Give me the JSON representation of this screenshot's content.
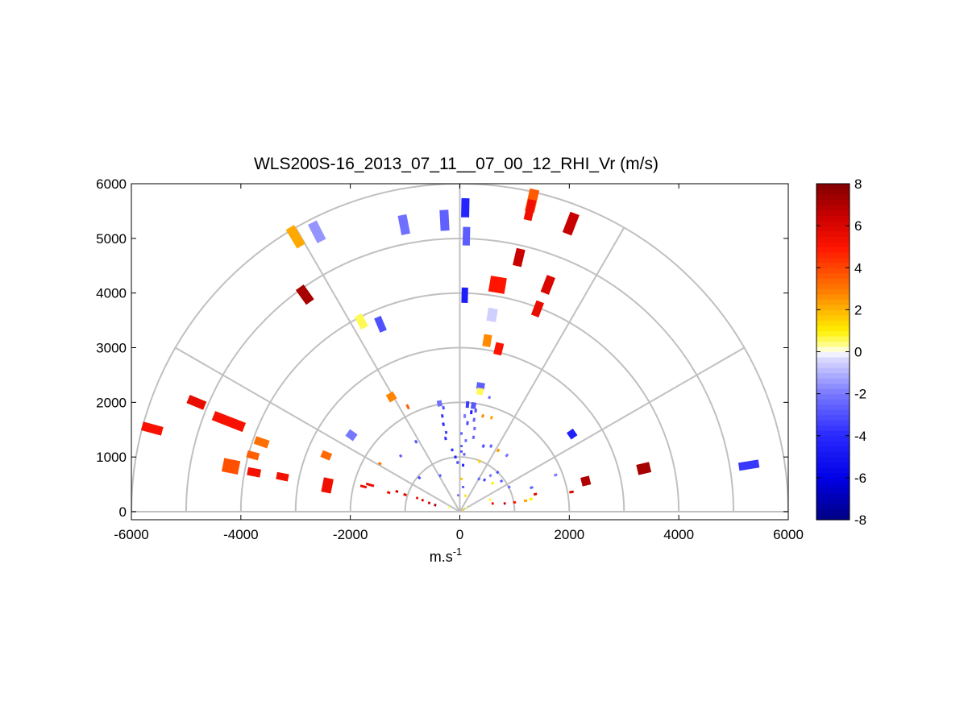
{
  "chart_data": {
    "type": "polar-rhi-scatter",
    "title": "WLS200S-16_2013_07_11__07_00_12_RHI_Vr (m/s)",
    "xlabel": "m.s",
    "xlabel_superscript": "-1",
    "ylabel": "",
    "xlim": [
      -6000,
      6000
    ],
    "ylim": [
      0,
      6000
    ],
    "x_ticks": [
      {
        "value": -6000,
        "label": "-6000"
      },
      {
        "value": -4000,
        "label": "-4000"
      },
      {
        "value": -2000,
        "label": "-2000"
      },
      {
        "value": 0,
        "label": "0"
      },
      {
        "value": 2000,
        "label": "2000"
      },
      {
        "value": 4000,
        "label": "4000"
      },
      {
        "value": 6000,
        "label": "6000"
      }
    ],
    "y_ticks": [
      {
        "value": 0,
        "label": "0"
      },
      {
        "value": 1000,
        "label": "1000"
      },
      {
        "value": 2000,
        "label": "2000"
      },
      {
        "value": 3000,
        "label": "3000"
      },
      {
        "value": 4000,
        "label": "4000"
      },
      {
        "value": 5000,
        "label": "5000"
      },
      {
        "value": 6000,
        "label": "6000"
      }
    ],
    "polar_grid": {
      "range_rings": [
        1000,
        2000,
        3000,
        4000,
        5000,
        6000
      ],
      "spoke_angles_deg": [
        0,
        30,
        60,
        90,
        120,
        150,
        180
      ]
    },
    "colorbar": {
      "min": -8,
      "max": 8,
      "ticks": [
        {
          "value": 8,
          "label": "8"
        },
        {
          "value": 6,
          "label": "6"
        },
        {
          "value": 4,
          "label": "4"
        },
        {
          "value": 2,
          "label": "2"
        },
        {
          "value": 0,
          "label": "0"
        },
        {
          "value": -2,
          "label": "-2"
        },
        {
          "value": -4,
          "label": "-4"
        },
        {
          "value": -6,
          "label": "-6"
        },
        {
          "value": -8,
          "label": "-8"
        }
      ]
    },
    "points": [
      {
        "x": -5620,
        "y": 1520,
        "v": 5.2,
        "len": 380,
        "w": 11
      },
      {
        "x": -4810,
        "y": 2000,
        "v": 5.6,
        "len": 330,
        "w": 11
      },
      {
        "x": -4220,
        "y": 1650,
        "v": 5.2,
        "len": 600,
        "w": 12
      },
      {
        "x": -4180,
        "y": 830,
        "v": 3.8,
        "len": 300,
        "w": 17
      },
      {
        "x": -3760,
        "y": 720,
        "v": 5.3,
        "len": 240,
        "w": 10
      },
      {
        "x": -3780,
        "y": 1030,
        "v": 3.5,
        "len": 220,
        "w": 9
      },
      {
        "x": -3620,
        "y": 1270,
        "v": 3.2,
        "len": 260,
        "w": 10
      },
      {
        "x": -3240,
        "y": 640,
        "v": 5.3,
        "len": 220,
        "w": 9
      },
      {
        "x": -2420,
        "y": 480,
        "v": 5.4,
        "len": 180,
        "w": 18
      },
      {
        "x": -2440,
        "y": 1030,
        "v": 3.3,
        "len": 180,
        "w": 9
      },
      {
        "x": -1760,
        "y": 460,
        "v": 5.5,
        "len": 120,
        "w": 3
      },
      {
        "x": -1640,
        "y": 490,
        "v": 5.6,
        "len": 150,
        "w": 3
      },
      {
        "x": -1460,
        "y": 880,
        "v": 3.0,
        "len": 60,
        "w": 3
      },
      {
        "x": -1300,
        "y": 350,
        "v": 5.3,
        "len": 60,
        "w": 3
      },
      {
        "x": -1150,
        "y": 370,
        "v": 6.5,
        "len": 50,
        "w": 3
      },
      {
        "x": -1000,
        "y": 310,
        "v": 5.6,
        "len": 60,
        "w": 3
      },
      {
        "x": -1980,
        "y": 1400,
        "v": -2.0,
        "len": 170,
        "w": 10
      },
      {
        "x": -1250,
        "y": 2100,
        "v": 2.8,
        "len": 150,
        "w": 10
      },
      {
        "x": -950,
        "y": 1920,
        "v": 3.5,
        "len": 90,
        "w": 3
      },
      {
        "x": -1080,
        "y": 1020,
        "v": -2.6,
        "len": 50,
        "w": 3
      },
      {
        "x": -800,
        "y": 1280,
        "v": -2.8,
        "len": 60,
        "w": 3
      },
      {
        "x": -740,
        "y": 620,
        "v": -3.3,
        "len": 50,
        "w": 3
      },
      {
        "x": -780,
        "y": 250,
        "v": 5.5,
        "len": 40,
        "w": 3
      },
      {
        "x": -680,
        "y": 210,
        "v": 6.0,
        "len": 40,
        "w": 3
      },
      {
        "x": -560,
        "y": 160,
        "v": 6.5,
        "len": 40,
        "w": 3
      },
      {
        "x": -450,
        "y": 120,
        "v": 7.2,
        "len": 40,
        "w": 3
      },
      {
        "x": -200,
        "y": 80,
        "v": 0.5,
        "len": 30,
        "w": 3
      },
      {
        "x": -360,
        "y": 660,
        "v": -2.5,
        "len": 50,
        "w": 3
      },
      {
        "x": -2830,
        "y": 3970,
        "v": 7.2,
        "len": 330,
        "w": 12
      },
      {
        "x": -1800,
        "y": 3480,
        "v": 0.6,
        "len": 260,
        "w": 10
      },
      {
        "x": -1450,
        "y": 3430,
        "v": -3.0,
        "len": 280,
        "w": 9
      },
      {
        "x": -3000,
        "y": 5030,
        "v": 2.2,
        "len": 400,
        "w": 12
      },
      {
        "x": -2610,
        "y": 5120,
        "v": -1.5,
        "len": 380,
        "w": 12
      },
      {
        "x": -1020,
        "y": 5250,
        "v": -2.2,
        "len": 360,
        "w": 11
      },
      {
        "x": -280,
        "y": 5330,
        "v": -2.6,
        "len": 380,
        "w": 11
      },
      {
        "x": 100,
        "y": 5560,
        "v": -4.2,
        "len": 350,
        "w": 10
      },
      {
        "x": 120,
        "y": 5040,
        "v": -2.7,
        "len": 340,
        "w": 9
      },
      {
        "x": 90,
        "y": 3960,
        "v": -4.5,
        "len": 280,
        "w": 8
      },
      {
        "x": 1320,
        "y": 5690,
        "v": 3.6,
        "len": 420,
        "w": 12
      },
      {
        "x": 1280,
        "y": 5520,
        "v": 5.4,
        "len": 380,
        "w": 10
      },
      {
        "x": 2030,
        "y": 5270,
        "v": 6.5,
        "len": 400,
        "w": 12
      },
      {
        "x": 1080,
        "y": 4650,
        "v": 6.5,
        "len": 320,
        "w": 11
      },
      {
        "x": 690,
        "y": 4150,
        "v": 5.0,
        "len": 290,
        "w": 20
      },
      {
        "x": 1610,
        "y": 4150,
        "v": 6.0,
        "len": 330,
        "w": 11
      },
      {
        "x": 1420,
        "y": 3710,
        "v": 5.6,
        "len": 280,
        "w": 10
      },
      {
        "x": 590,
        "y": 3600,
        "v": -0.5,
        "len": 240,
        "w": 12
      },
      {
        "x": 500,
        "y": 3130,
        "v": 2.7,
        "len": 220,
        "w": 10
      },
      {
        "x": 710,
        "y": 2980,
        "v": 5.1,
        "len": 220,
        "w": 10
      },
      {
        "x": 380,
        "y": 2300,
        "v": -2.6,
        "len": 120,
        "w": 10
      },
      {
        "x": 370,
        "y": 2200,
        "v": 0.6,
        "len": 120,
        "w": 8
      },
      {
        "x": -370,
        "y": 1980,
        "v": -2.2,
        "len": 110,
        "w": 6
      },
      {
        "x": 250,
        "y": 1940,
        "v": -2.8,
        "len": 120,
        "w": 6
      },
      {
        "x": 140,
        "y": 1960,
        "v": -3.5,
        "len": 120,
        "w": 4
      },
      {
        "x": -300,
        "y": 1900,
        "v": -3.0,
        "len": 60,
        "w": 3
      },
      {
        "x": -320,
        "y": 1750,
        "v": -3.6,
        "len": 60,
        "w": 3
      },
      {
        "x": -300,
        "y": 1600,
        "v": -4.0,
        "len": 60,
        "w": 3
      },
      {
        "x": -250,
        "y": 1450,
        "v": -3.4,
        "len": 50,
        "w": 3
      },
      {
        "x": -260,
        "y": 1340,
        "v": -3.7,
        "len": 60,
        "w": 3
      },
      {
        "x": -140,
        "y": 1130,
        "v": -3.8,
        "len": 50,
        "w": 3
      },
      {
        "x": -80,
        "y": 1000,
        "v": -4.5,
        "len": 50,
        "w": 3
      },
      {
        "x": -40,
        "y": 900,
        "v": -3.2,
        "len": 50,
        "w": 3
      },
      {
        "x": 60,
        "y": 850,
        "v": -4.2,
        "len": 50,
        "w": 3
      },
      {
        "x": 80,
        "y": 1050,
        "v": -2.6,
        "len": 50,
        "w": 3
      },
      {
        "x": 30,
        "y": 1200,
        "v": -3.0,
        "len": 40,
        "w": 3
      },
      {
        "x": 110,
        "y": 1300,
        "v": -2.4,
        "len": 50,
        "w": 3
      },
      {
        "x": 140,
        "y": 1620,
        "v": -3.1,
        "len": 70,
        "w": 3
      },
      {
        "x": 90,
        "y": 1750,
        "v": -2.0,
        "len": 70,
        "w": 3
      },
      {
        "x": 210,
        "y": 1820,
        "v": -4.4,
        "len": 70,
        "w": 3
      },
      {
        "x": 290,
        "y": 1850,
        "v": -3.0,
        "len": 70,
        "w": 3
      },
      {
        "x": 260,
        "y": 1680,
        "v": -2.6,
        "len": 70,
        "w": 3
      },
      {
        "x": 270,
        "y": 1520,
        "v": -2.4,
        "len": 60,
        "w": 3
      },
      {
        "x": 250,
        "y": 1360,
        "v": -2.5,
        "len": 60,
        "w": 3
      },
      {
        "x": 30,
        "y": 1430,
        "v": -2.5,
        "len": 50,
        "w": 3
      },
      {
        "x": 30,
        "y": 1100,
        "v": -3.2,
        "len": 40,
        "w": 3
      },
      {
        "x": 30,
        "y": 600,
        "v": 1.8,
        "len": 40,
        "w": 3
      },
      {
        "x": 60,
        "y": 450,
        "v": -3.0,
        "len": 40,
        "w": 3
      },
      {
        "x": 100,
        "y": 290,
        "v": 1.2,
        "len": 40,
        "w": 3
      },
      {
        "x": -30,
        "y": 300,
        "v": -2.0,
        "len": 40,
        "w": 3
      },
      {
        "x": 420,
        "y": 1750,
        "v": 2.7,
        "len": 60,
        "w": 3
      },
      {
        "x": 580,
        "y": 1720,
        "v": 2.2,
        "len": 60,
        "w": 3
      },
      {
        "x": 430,
        "y": 1200,
        "v": -3.0,
        "len": 60,
        "w": 3
      },
      {
        "x": 570,
        "y": 1200,
        "v": -2.4,
        "len": 60,
        "w": 3
      },
      {
        "x": 360,
        "y": 920,
        "v": 1.5,
        "len": 60,
        "w": 3
      },
      {
        "x": 350,
        "y": 600,
        "v": -2.4,
        "len": 50,
        "w": 3
      },
      {
        "x": 450,
        "y": 580,
        "v": -3.2,
        "len": 50,
        "w": 3
      },
      {
        "x": 600,
        "y": 520,
        "v": 1.0,
        "len": 50,
        "w": 3
      },
      {
        "x": 560,
        "y": 660,
        "v": -2.0,
        "len": 50,
        "w": 3
      },
      {
        "x": 690,
        "y": 720,
        "v": -3.0,
        "len": 50,
        "w": 3
      },
      {
        "x": 760,
        "y": 560,
        "v": -2.6,
        "len": 50,
        "w": 3
      },
      {
        "x": 900,
        "y": 450,
        "v": -2.3,
        "len": 50,
        "w": 3
      },
      {
        "x": 700,
        "y": 1120,
        "v": 2.5,
        "len": 60,
        "w": 3
      },
      {
        "x": 860,
        "y": 1030,
        "v": -2.1,
        "len": 60,
        "w": 3
      },
      {
        "x": 540,
        "y": 2090,
        "v": -2.4,
        "len": 50,
        "w": 3
      },
      {
        "x": 550,
        "y": 220,
        "v": 0.8,
        "len": 40,
        "w": 3
      },
      {
        "x": 600,
        "y": 150,
        "v": 5.5,
        "len": 40,
        "w": 3
      },
      {
        "x": 820,
        "y": 150,
        "v": 6.5,
        "len": 40,
        "w": 3
      },
      {
        "x": 1000,
        "y": 170,
        "v": 5.0,
        "len": 50,
        "w": 3
      },
      {
        "x": 1200,
        "y": 200,
        "v": 2.3,
        "len": 60,
        "w": 3
      },
      {
        "x": 1300,
        "y": 230,
        "v": 1.0,
        "len": 60,
        "w": 3
      },
      {
        "x": 1310,
        "y": 440,
        "v": -2.6,
        "len": 60,
        "w": 3
      },
      {
        "x": 1380,
        "y": 320,
        "v": 5.8,
        "len": 60,
        "w": 3
      },
      {
        "x": 1750,
        "y": 670,
        "v": -2.0,
        "len": 60,
        "w": 3
      },
      {
        "x": 2050,
        "y": 1420,
        "v": -4.4,
        "len": 140,
        "w": 10
      },
      {
        "x": 2300,
        "y": 560,
        "v": 7.0,
        "len": 160,
        "w": 11
      },
      {
        "x": 2040,
        "y": 360,
        "v": 6.0,
        "len": 80,
        "w": 3
      },
      {
        "x": 3360,
        "y": 790,
        "v": 7.2,
        "len": 240,
        "w": 13
      },
      {
        "x": 5280,
        "y": 850,
        "v": -3.6,
        "len": 370,
        "w": 10
      },
      {
        "x": 120,
        "y": 60,
        "v": 0.5,
        "len": 30,
        "w": 3
      },
      {
        "x": 50,
        "y": 30,
        "v": 1.5,
        "len": 20,
        "w": 3
      }
    ]
  }
}
